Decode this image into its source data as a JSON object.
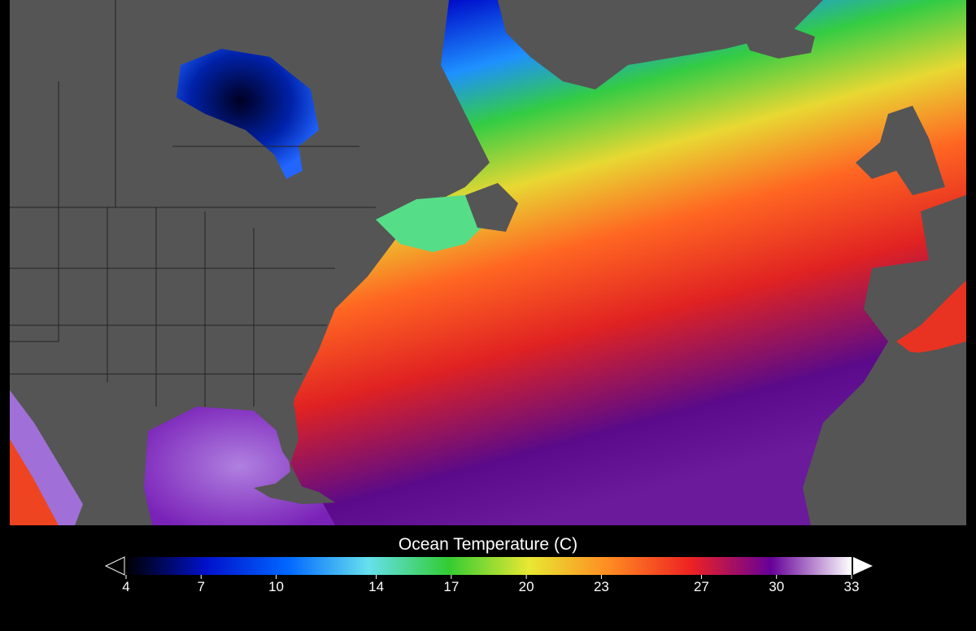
{
  "title": "Ocean Temperature (C)",
  "colorbar": {
    "ticks": [
      "4",
      "7",
      "10",
      "14",
      "17",
      "20",
      "23",
      "27",
      "30",
      "33"
    ],
    "tick_values": [
      4,
      7,
      10,
      14,
      17,
      20,
      23,
      27,
      30,
      33
    ],
    "range": [
      4,
      33
    ],
    "colors": [
      "#000000",
      "#0011cc",
      "#0066ff",
      "#66e0ee",
      "#33cc33",
      "#e8e833",
      "#ff8a22",
      "#ee2222",
      "#660099",
      "#ffffff"
    ],
    "extend_low": "open-triangle",
    "extend_high": "white-triangle"
  },
  "map": {
    "land_color": "#555555",
    "border_color": "#222222",
    "region": "North Atlantic Ocean"
  }
}
